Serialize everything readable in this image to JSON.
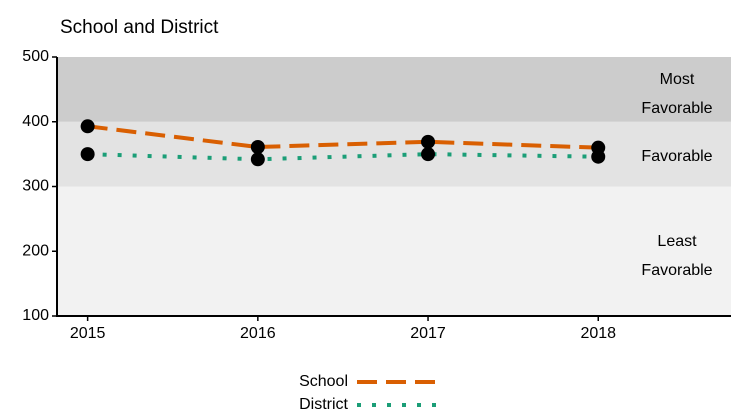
{
  "chart_data": {
    "type": "line",
    "title": "School and District",
    "x": [
      2015,
      2016,
      2017,
      2018
    ],
    "series": [
      {
        "name": "School",
        "color": "#d95f02",
        "values": [
          393,
          361,
          369,
          360
        ]
      },
      {
        "name": "District",
        "color": "#1b9e77",
        "values": [
          350,
          342,
          350,
          346
        ]
      }
    ],
    "bands": [
      {
        "label": "Least Favorable",
        "from": 100,
        "to": 300,
        "color": "#f2f2f2"
      },
      {
        "label": "Favorable",
        "from": 300,
        "to": 400,
        "color": "#e3e3e3"
      },
      {
        "label": "Most Favorable",
        "from": 400,
        "to": 500,
        "color": "#cccccc"
      }
    ],
    "xlim": [
      2014.82,
      2018.78
    ],
    "xticks": [
      2015,
      2016,
      2017,
      2018
    ],
    "ylim": [
      100,
      500
    ],
    "yticks": [
      100,
      200,
      300,
      400,
      500
    ]
  }
}
